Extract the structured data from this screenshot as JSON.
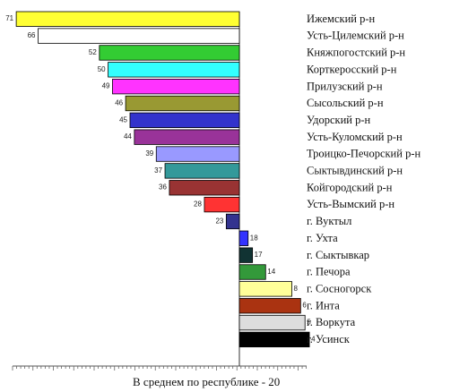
{
  "chart_data": {
    "type": "bar",
    "orientation": "horizontal-diverging",
    "reference_value": 20,
    "categories": [
      "Ижемский р-н",
      "Усть-Цилемский р-н",
      "Княжпогостский р-н",
      "Корткеросский р-н",
      "Прилузский р-н",
      "Сысольский р-н",
      "Удорский р-н",
      "Усть-Куломский р-н",
      "Троицко-Печорский р-н",
      "Сыктывдинский р-н",
      "Койгородский р-н",
      "Усть-Вымский р-н",
      "г. Вуктыл",
      "г. Ухта",
      "г. Сыктывкар",
      "г. Печора",
      "г. Сосногорск",
      "г. Инта",
      "г. Воркута",
      "г. Усинск"
    ],
    "values": [
      71,
      66,
      52,
      50,
      49,
      46,
      45,
      44,
      39,
      37,
      36,
      28,
      23,
      18,
      17,
      14,
      8,
      6,
      5,
      4
    ],
    "colors": [
      "#ffff33",
      "#ffffff",
      "#33cc33",
      "#33ffff",
      "#ff33ff",
      "#999933",
      "#3333cc",
      "#993399",
      "#9999ff",
      "#33999a",
      "#993333",
      "#ff3333",
      "#33338f",
      "#3333ff",
      "#113333",
      "#33993a",
      "#ffff99",
      "#aa3311",
      "#dddddd",
      "#000000"
    ],
    "value_labels": [
      "71",
      "66",
      "52",
      "50",
      "49",
      "46",
      "45",
      "44",
      "39",
      "37",
      "36",
      "28",
      "23",
      "18",
      "17",
      "14",
      "8",
      "6",
      "5",
      "4"
    ],
    "footnote": "В среднем по республике - 20",
    "title": "",
    "xlabel": "",
    "ylabel": "",
    "grid": false
  }
}
